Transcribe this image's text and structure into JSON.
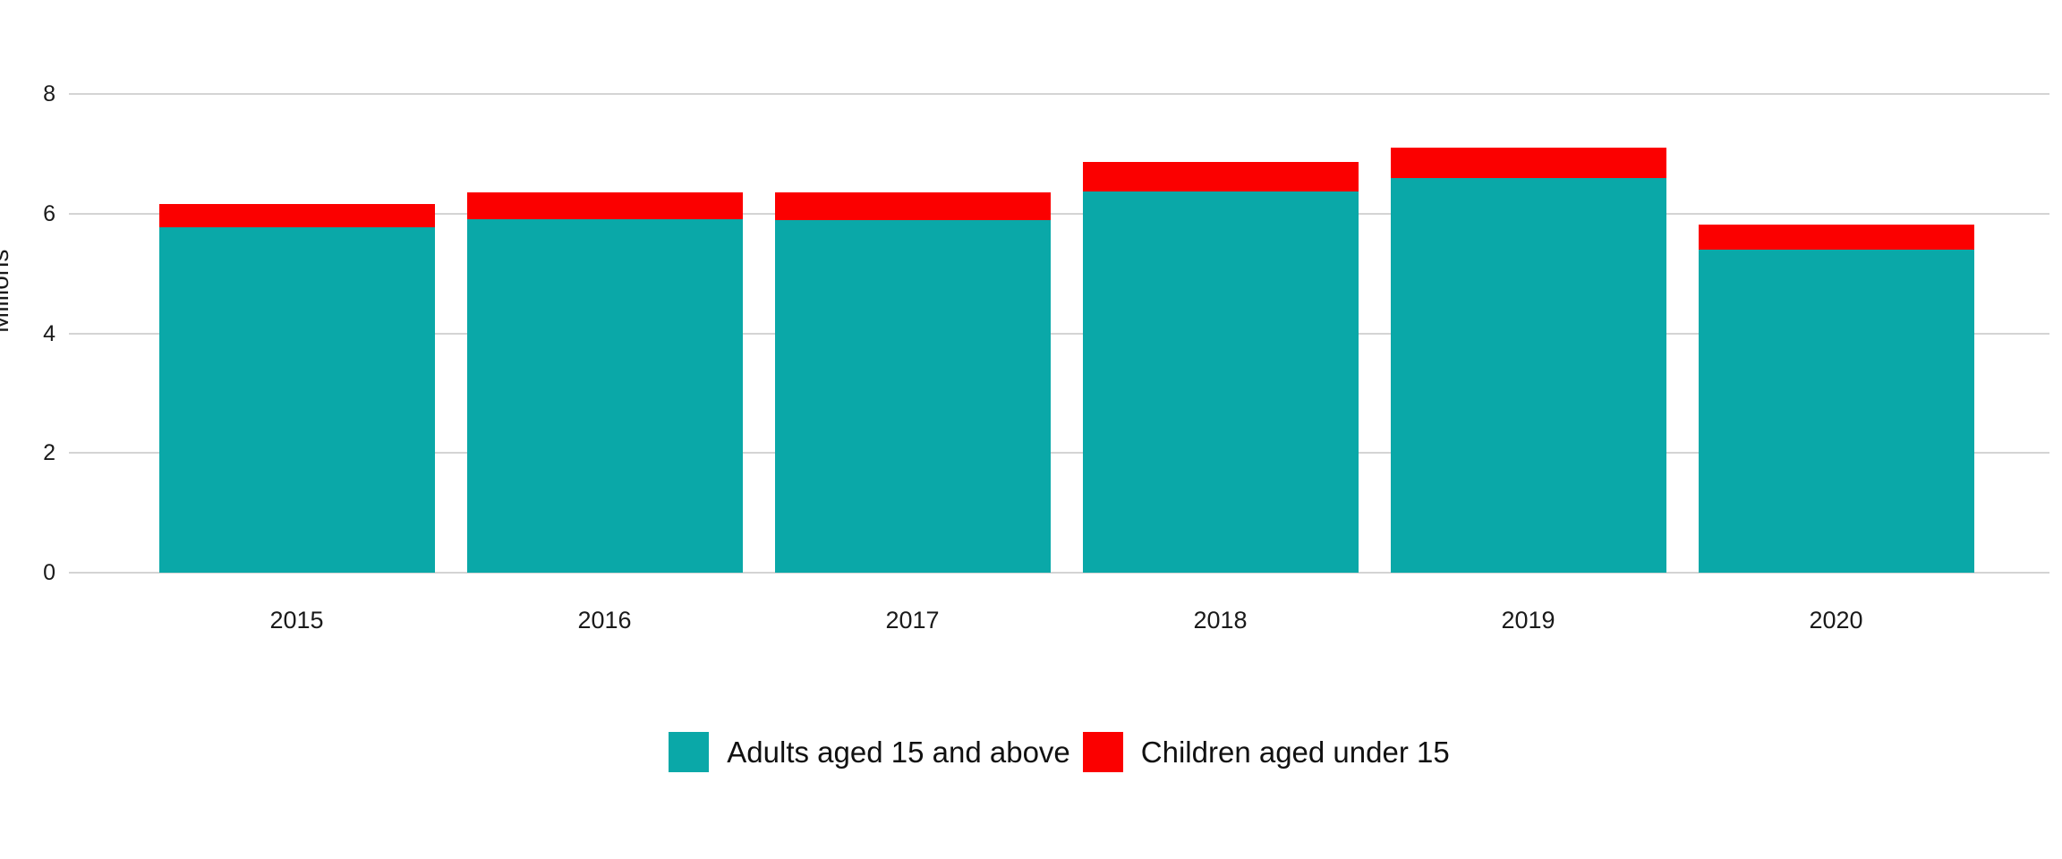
{
  "chart_data": {
    "type": "bar",
    "stacked": true,
    "title": "",
    "xlabel": "",
    "ylabel": "Millions",
    "categories": [
      "2015",
      "2016",
      "2017",
      "2018",
      "2019",
      "2020"
    ],
    "series": [
      {
        "name": "Adults aged 15 and above",
        "color": "#0AA8A8",
        "values": [
          5.77,
          5.91,
          5.89,
          6.37,
          6.59,
          5.4
        ]
      },
      {
        "name": "Children aged under 15",
        "color": "#FB0000",
        "values": [
          0.39,
          0.45,
          0.46,
          0.5,
          0.52,
          0.42
        ]
      }
    ],
    "totals": [
      6.16,
      6.36,
      6.35,
      6.87,
      7.11,
      5.82
    ],
    "ylim": [
      0,
      8
    ],
    "yticks": [
      0,
      2,
      4,
      6,
      8
    ],
    "grid": true,
    "legend_position": "bottom",
    "colors": {
      "gridline": "#D4D4D4",
      "text": "#1A1A1A",
      "background": "#FFFFFF"
    }
  }
}
